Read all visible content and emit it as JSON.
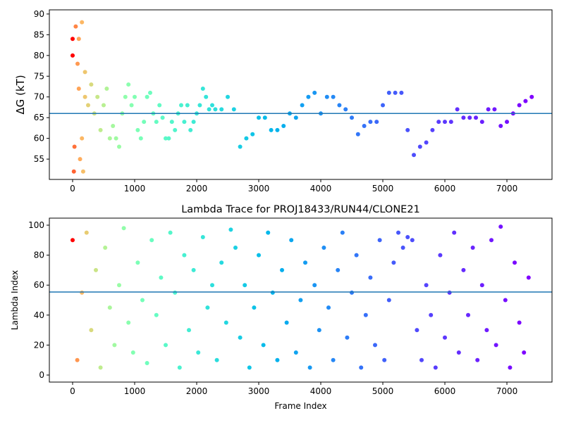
{
  "chart_data": [
    {
      "type": "scatter",
      "ylabel": "ΔG (kT)",
      "colormap": "rainbow_r",
      "xlim": [
        -375,
        7727
      ],
      "xticks": [
        0,
        1000,
        2000,
        3000,
        4000,
        5000,
        6000,
        7000
      ],
      "ylim": [
        50.1,
        91.0
      ],
      "yticks": [
        55,
        60,
        65,
        70,
        75,
        80,
        85,
        90
      ],
      "hline": 66.0,
      "hline_color": "#1f77b4",
      "x": [
        0,
        20,
        30,
        50,
        80,
        100,
        120,
        150,
        170,
        200,
        0,
        100,
        150,
        200,
        250,
        300,
        350,
        400,
        450,
        500,
        550,
        600,
        650,
        700,
        750,
        800,
        850,
        900,
        950,
        1000,
        1050,
        1100,
        1150,
        1200,
        1250,
        1300,
        1350,
        1400,
        1450,
        1500,
        1550,
        1600,
        1650,
        1700,
        1750,
        1800,
        1850,
        1900,
        1950,
        2000,
        2050,
        2100,
        2150,
        2200,
        2250,
        2300,
        2400,
        2500,
        2600,
        2700,
        2800,
        2900,
        3000,
        3100,
        3200,
        3300,
        3400,
        3500,
        3600,
        3700,
        3800,
        3900,
        4000,
        4100,
        4200,
        4300,
        4400,
        4500,
        4600,
        4700,
        4800,
        4900,
        5000,
        5100,
        5200,
        5300,
        5400,
        5500,
        5600,
        5700,
        5800,
        5900,
        6000,
        6100,
        6200,
        6300,
        6400,
        6500,
        6600,
        6700,
        6800,
        6900,
        7000,
        7100,
        7200,
        7300,
        7400
      ],
      "values": [
        84,
        52,
        58,
        87,
        78,
        84,
        55,
        88,
        52,
        76,
        80,
        72,
        60,
        70,
        68,
        73,
        66,
        70,
        62,
        68,
        72,
        60,
        63,
        60,
        58,
        66,
        70,
        73,
        68,
        70,
        62,
        60,
        64,
        70,
        71,
        66,
        64,
        68,
        65,
        60,
        60,
        64,
        62,
        66,
        68,
        64,
        68,
        62,
        64,
        66,
        68,
        72,
        70,
        67,
        68,
        67,
        67,
        70,
        67,
        58,
        60,
        61,
        65,
        65,
        62,
        62,
        63,
        66,
        65,
        68,
        70,
        71,
        66,
        70,
        70,
        68,
        67,
        65,
        61,
        63,
        64,
        64,
        68,
        71,
        71,
        71,
        62,
        56,
        58,
        59,
        62,
        64,
        64,
        64,
        67,
        65,
        65,
        65,
        64,
        67,
        67,
        63,
        64,
        66,
        68,
        69,
        70
      ]
    },
    {
      "type": "scatter",
      "title": "Lambda Trace for PROJ18433/RUN44/CLONE21",
      "xlabel": "Frame Index",
      "ylabel": "Lambda Index",
      "colormap": "rainbow_r",
      "xlim": [
        -375,
        7727
      ],
      "xticks": [
        0,
        1000,
        2000,
        3000,
        4000,
        5000,
        6000,
        7000
      ],
      "ylim": [
        -4.7,
        104.7
      ],
      "yticks": [
        0,
        20,
        40,
        60,
        80,
        100
      ],
      "hline": 55.4,
      "hline_color": "#1f77b4",
      "x": [
        0,
        75,
        150,
        225,
        300,
        375,
        450,
        525,
        600,
        675,
        750,
        825,
        900,
        975,
        1050,
        1125,
        1200,
        1275,
        1350,
        1425,
        1500,
        1575,
        1650,
        1725,
        1800,
        1875,
        1950,
        2025,
        2100,
        2175,
        2250,
        2325,
        2400,
        2475,
        2550,
        2625,
        2700,
        2775,
        2850,
        2925,
        3000,
        3075,
        3150,
        3225,
        3300,
        3375,
        3450,
        3525,
        3600,
        3675,
        3750,
        3825,
        3900,
        3975,
        4050,
        4125,
        4200,
        4275,
        4350,
        4425,
        4500,
        4575,
        4650,
        4725,
        4800,
        4875,
        4950,
        5025,
        5100,
        5175,
        5250,
        5325,
        5400,
        5475,
        5550,
        5625,
        5700,
        5775,
        5850,
        5925,
        6000,
        6075,
        6150,
        6225,
        6300,
        6375,
        6450,
        6525,
        6600,
        6675,
        6750,
        6825,
        6900,
        6975,
        7050,
        7125,
        7200,
        7275,
        7350
      ],
      "values": [
        90,
        10,
        55,
        95,
        30,
        70,
        5,
        85,
        45,
        20,
        60,
        98,
        35,
        15,
        75,
        50,
        8,
        90,
        40,
        65,
        20,
        95,
        55,
        5,
        80,
        30,
        70,
        15,
        92,
        45,
        60,
        10,
        75,
        35,
        97,
        85,
        25,
        60,
        5,
        45,
        80,
        20,
        95,
        55,
        10,
        70,
        35,
        90,
        15,
        50,
        75,
        5,
        60,
        30,
        85,
        45,
        10,
        70,
        95,
        25,
        55,
        80,
        5,
        40,
        65,
        20,
        90,
        10,
        50,
        75,
        95,
        85,
        92,
        90,
        30,
        10,
        60,
        40,
        5,
        80,
        25,
        55,
        95,
        15,
        70,
        40,
        85,
        10,
        60,
        30,
        90,
        20,
        99,
        50,
        5,
        75,
        35,
        15,
        65
      ]
    }
  ]
}
